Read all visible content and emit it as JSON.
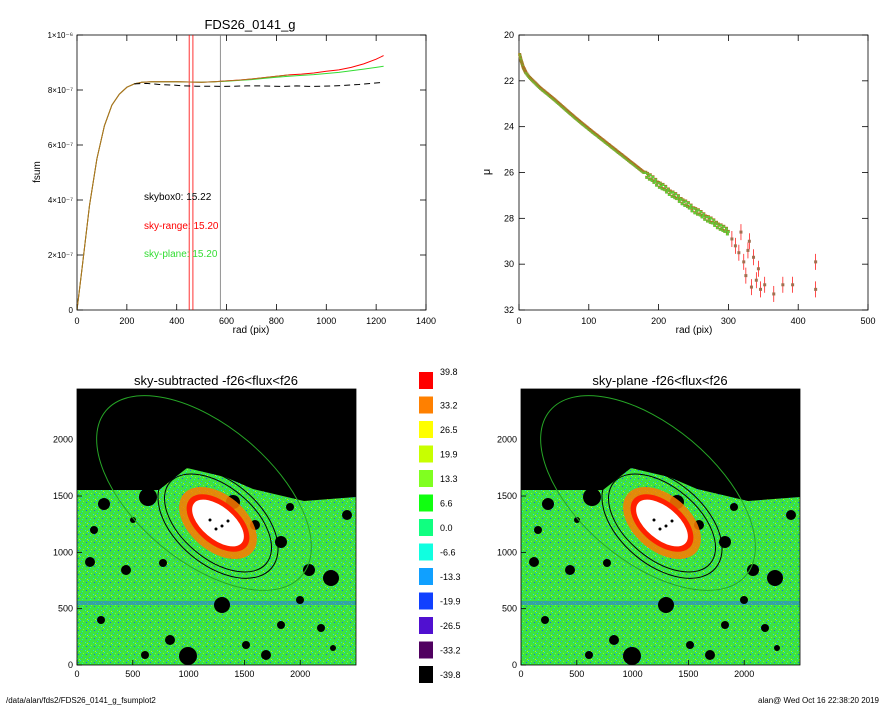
{
  "chart_data": [
    {
      "type": "line",
      "title": "FDS26_0141_g",
      "xlabel": "rad (pix)",
      "ylabel": "fsum",
      "xlim": [
        0,
        1400
      ],
      "ylim": [
        0,
        1e-06
      ],
      "xticks": [
        "0",
        "200",
        "400",
        "600",
        "800",
        "1000",
        "1200",
        "1400"
      ],
      "xtick_values": [
        0,
        200,
        400,
        600,
        800,
        1000,
        1200,
        1400
      ],
      "yticks": [
        "0",
        "2×10⁻⁷",
        "4×10⁻⁷",
        "6×10⁻⁷",
        "8×10⁻⁷",
        "1×10⁻⁶"
      ],
      "ytick_values": [
        0,
        2e-07,
        4e-07,
        6e-07,
        8e-07,
        1e-06
      ],
      "vlines": [
        {
          "x": 450,
          "color": "#ff0000"
        },
        {
          "x": 465,
          "color": "#ff0000"
        },
        {
          "x": 575,
          "color": "#777777"
        }
      ],
      "annotations": [
        {
          "text": "skybox0: 15.22",
          "color": "#000000"
        },
        {
          "text": "sky-range: 15.20",
          "color": "#ff0000"
        },
        {
          "text": "sky-plane: 15.20",
          "color": "#33dd33"
        }
      ],
      "series": [
        {
          "color": "#ff0000",
          "x": [
            0,
            20,
            50,
            80,
            110,
            140,
            170,
            200,
            230,
            260,
            300,
            350,
            400,
            450,
            500,
            550,
            600,
            650,
            700,
            750,
            800,
            850,
            900,
            950,
            1000,
            1050,
            1100,
            1150,
            1200,
            1230
          ],
          "y": [
            0,
            1.5e-07,
            3.8e-07,
            5.5e-07,
            6.7e-07,
            7.45e-07,
            7.85e-07,
            8.1e-07,
            8.22e-07,
            8.28e-07,
            8.3e-07,
            8.3e-07,
            8.3e-07,
            8.29e-07,
            8.28e-07,
            8.3e-07,
            8.33e-07,
            8.36e-07,
            8.4e-07,
            8.45e-07,
            8.5e-07,
            8.55e-07,
            8.58e-07,
            8.62e-07,
            8.68e-07,
            8.73e-07,
            8.82e-07,
            8.95e-07,
            9.12e-07,
            9.25e-07
          ]
        },
        {
          "color": "#33dd33",
          "x": [
            0,
            20,
            50,
            80,
            110,
            140,
            170,
            200,
            230,
            260,
            300,
            350,
            400,
            450,
            500,
            550,
            600,
            650,
            700,
            750,
            800,
            850,
            900,
            950,
            1000,
            1050,
            1100,
            1150,
            1200,
            1230
          ],
          "y": [
            0,
            1.5e-07,
            3.8e-07,
            5.5e-07,
            6.7e-07,
            7.45e-07,
            7.85e-07,
            8.1e-07,
            8.22e-07,
            8.28e-07,
            8.3e-07,
            8.3e-07,
            8.3e-07,
            8.29e-07,
            8.28e-07,
            8.3e-07,
            8.32e-07,
            8.35e-07,
            8.38e-07,
            8.42e-07,
            8.46e-07,
            8.5e-07,
            8.53e-07,
            8.56e-07,
            8.6e-07,
            8.64e-07,
            8.7e-07,
            8.76e-07,
            8.82e-07,
            8.86e-07
          ]
        },
        {
          "color": "#b07020",
          "x": [
            0,
            20,
            50,
            80,
            110,
            140,
            170,
            200,
            230,
            260,
            300,
            350,
            400,
            450,
            500,
            550,
            600,
            650,
            700,
            750,
            800,
            850
          ],
          "y": [
            0,
            1.5e-07,
            3.8e-07,
            5.5e-07,
            6.7e-07,
            7.45e-07,
            7.85e-07,
            8.1e-07,
            8.22e-07,
            8.28e-07,
            8.3e-07,
            8.3e-07,
            8.3e-07,
            8.29e-07,
            8.28e-07,
            8.3e-07,
            8.33e-07,
            8.36e-07,
            8.4e-07,
            8.45e-07,
            8.5e-07,
            8.55e-07
          ]
        },
        {
          "color": "#000000",
          "dashed": true,
          "x": [
            230,
            280,
            330,
            380,
            430,
            480,
            530,
            580,
            630,
            680,
            730,
            780,
            830,
            880,
            930,
            980,
            1030,
            1080,
            1130,
            1180,
            1230
          ],
          "y": [
            8.22e-07,
            8.24e-07,
            8.2e-07,
            8.18e-07,
            8.15e-07,
            8.14e-07,
            8.14e-07,
            8.13e-07,
            8.14e-07,
            8.15e-07,
            8.15e-07,
            8.14e-07,
            8.13e-07,
            8.15e-07,
            8.13e-07,
            8.14e-07,
            8.15e-07,
            8.17e-07,
            8.2e-07,
            8.24e-07,
            8.28e-07
          ]
        }
      ]
    },
    {
      "type": "scatter",
      "xlabel": "rad (pix)",
      "ylabel": "μ",
      "xlim": [
        0,
        500
      ],
      "ylim": [
        32,
        20
      ],
      "xticks": [
        "0",
        "100",
        "200",
        "300",
        "400",
        "500"
      ],
      "xtick_values": [
        0,
        100,
        200,
        300,
        400,
        500
      ],
      "yticks": [
        "20",
        "22",
        "24",
        "26",
        "28",
        "30",
        "32"
      ],
      "ytick_values": [
        20,
        22,
        24,
        26,
        28,
        30,
        32
      ],
      "profile": {
        "x": [
          1,
          3,
          6,
          10,
          15,
          20,
          30,
          50,
          80,
          100,
          150,
          200,
          250,
          300
        ],
        "y": [
          20.85,
          21.1,
          21.4,
          21.65,
          21.85,
          22.0,
          22.3,
          22.8,
          23.6,
          24.1,
          25.3,
          26.5,
          27.6,
          28.6
        ]
      },
      "outer_points": [
        {
          "x": 305,
          "y": 28.9
        },
        {
          "x": 310,
          "y": 29.2
        },
        {
          "x": 315,
          "y": 29.5
        },
        {
          "x": 318,
          "y": 28.6
        },
        {
          "x": 322,
          "y": 29.9
        },
        {
          "x": 325,
          "y": 30.5
        },
        {
          "x": 328,
          "y": 29.4
        },
        {
          "x": 330,
          "y": 29.0
        },
        {
          "x": 333,
          "y": 31.0
        },
        {
          "x": 336,
          "y": 29.7
        },
        {
          "x": 340,
          "y": 30.7
        },
        {
          "x": 343,
          "y": 30.2
        },
        {
          "x": 346,
          "y": 31.1
        },
        {
          "x": 352,
          "y": 30.9
        },
        {
          "x": 365,
          "y": 31.3
        },
        {
          "x": 378,
          "y": 30.9
        },
        {
          "x": 392,
          "y": 30.9
        },
        {
          "x": 425,
          "y": 29.9
        },
        {
          "x": 425,
          "y": 31.1
        }
      ]
    },
    {
      "type": "heatmap",
      "title": "sky-subtracted -f26<flux<f26",
      "xticks": [
        "0",
        "500",
        "1000",
        "1500",
        "2000"
      ],
      "xtick_values": [
        0,
        500,
        1000,
        1500,
        2000
      ],
      "yticks": [
        "0",
        "500",
        "1000",
        "1500",
        "2000"
      ],
      "ytick_values": [
        0,
        500,
        1000,
        1500,
        2000
      ],
      "xlim": [
        0,
        2500
      ],
      "ylim": [
        0,
        2450
      ]
    },
    {
      "type": "heatmap",
      "title": "sky-plane -f26<flux<f26",
      "xticks": [
        "0",
        "500",
        "1000",
        "1500",
        "2000"
      ],
      "xtick_values": [
        0,
        500,
        1000,
        1500,
        2000
      ],
      "yticks": [
        "0",
        "500",
        "1000",
        "1500",
        "2000"
      ],
      "ytick_values": [
        0,
        500,
        1000,
        1500,
        2000
      ],
      "xlim": [
        0,
        2500
      ],
      "ylim": [
        0,
        2450
      ]
    }
  ],
  "colorbar": {
    "labels": [
      "39.8",
      "33.2",
      "26.5",
      "19.9",
      "13.3",
      "6.6",
      "0.0",
      "-6.6",
      "-13.3",
      "-19.9",
      "-26.5",
      "-33.2",
      "-39.8"
    ],
    "colors": [
      "#ff0000",
      "#ff8000",
      "#ffff00",
      "#c8ff00",
      "#80ff20",
      "#10ff10",
      "#10ff80",
      "#10ffe0",
      "#10a0ff",
      "#1040ff",
      "#5010d0",
      "#500060",
      "#000000"
    ]
  },
  "footer": {
    "left": "/data/alan/fds2/FDS26_0141_g_fsumplot2",
    "right": "alan@  Wed Oct 16 22:38:20 2019"
  }
}
